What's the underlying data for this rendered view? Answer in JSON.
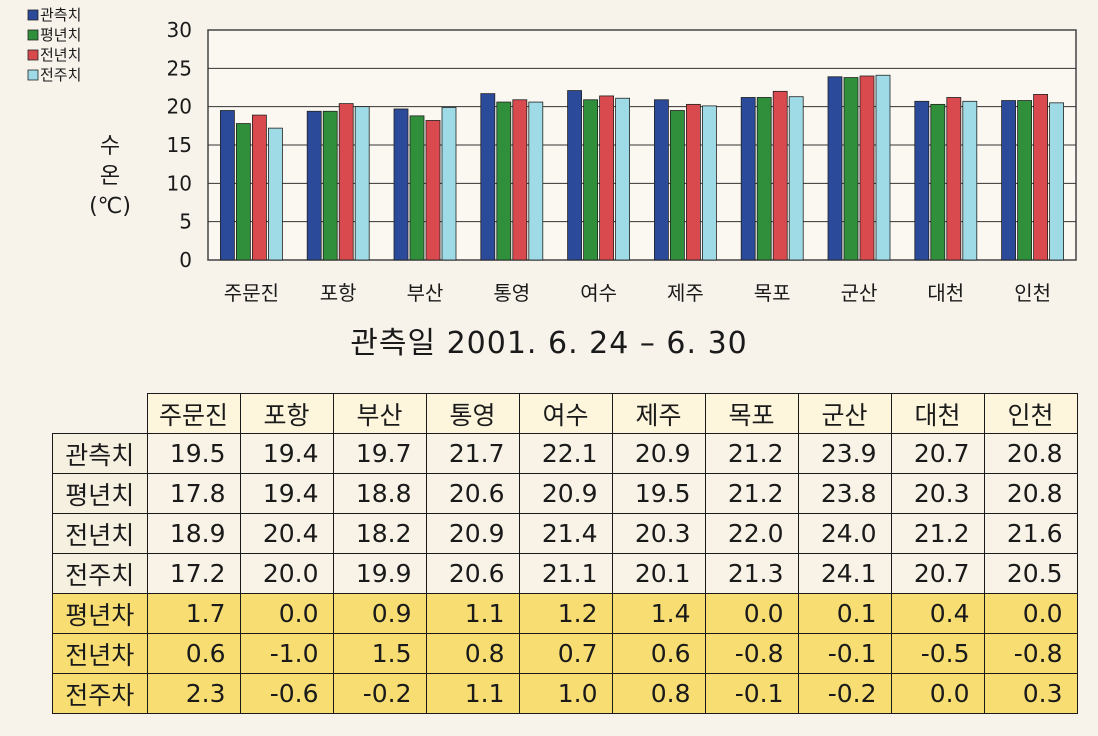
{
  "chart_data": {
    "type": "bar",
    "categories": [
      "주문진",
      "포항",
      "부산",
      "통영",
      "여수",
      "제주",
      "목포",
      "군산",
      "대천",
      "인천"
    ],
    "series": [
      {
        "name": "관측치",
        "color": "#2b4a9a",
        "values": [
          19.5,
          19.4,
          19.7,
          21.7,
          22.1,
          20.9,
          21.2,
          23.9,
          20.7,
          20.8
        ]
      },
      {
        "name": "평년치",
        "color": "#2f8f3a",
        "values": [
          17.8,
          19.4,
          18.8,
          20.6,
          20.9,
          19.5,
          21.2,
          23.8,
          20.3,
          20.8
        ]
      },
      {
        "name": "전년치",
        "color": "#d94a4f",
        "values": [
          18.9,
          20.4,
          18.2,
          20.9,
          21.4,
          20.3,
          22.0,
          24.0,
          21.2,
          21.6
        ]
      },
      {
        "name": "전주치",
        "color": "#9fdbe6",
        "values": [
          17.2,
          20.0,
          19.9,
          20.6,
          21.1,
          20.1,
          21.3,
          24.1,
          20.7,
          20.5
        ]
      }
    ],
    "ylabel": [
      "수",
      "온",
      "(℃)"
    ],
    "ylim": [
      0,
      30
    ],
    "yticks": [
      0,
      5,
      10,
      15,
      20,
      25,
      30
    ],
    "grid": true,
    "legend": "top-left",
    "subtitle": "관측일 2001. 6. 24 – 6. 30"
  },
  "table": {
    "columns": [
      "주문진",
      "포항",
      "부산",
      "통영",
      "여수",
      "제주",
      "목포",
      "군산",
      "대천",
      "인천"
    ],
    "rows": [
      {
        "label": "관측치",
        "values": [
          "19.5",
          "19.4",
          "19.7",
          "21.7",
          "22.1",
          "20.9",
          "21.2",
          "23.9",
          "20.7",
          "20.8"
        ]
      },
      {
        "label": "평년치",
        "values": [
          "17.8",
          "19.4",
          "18.8",
          "20.6",
          "20.9",
          "19.5",
          "21.2",
          "23.8",
          "20.3",
          "20.8"
        ]
      },
      {
        "label": "전년치",
        "values": [
          "18.9",
          "20.4",
          "18.2",
          "20.9",
          "21.4",
          "20.3",
          "22.0",
          "24.0",
          "21.2",
          "21.6"
        ]
      },
      {
        "label": "전주치",
        "values": [
          "17.2",
          "20.0",
          "19.9",
          "20.6",
          "21.1",
          "20.1",
          "21.3",
          "24.1",
          "20.7",
          "20.5"
        ]
      },
      {
        "label": "평년차",
        "values": [
          "1.7",
          "0.0",
          "0.9",
          "1.1",
          "1.2",
          "1.4",
          "0.0",
          "0.1",
          "0.4",
          "0.0"
        ]
      },
      {
        "label": "전년차",
        "values": [
          "0.6",
          "-1.0",
          "1.5",
          "0.8",
          "0.7",
          "0.6",
          "-0.8",
          "-0.1",
          "-0.5",
          "-0.8"
        ]
      },
      {
        "label": "전주차",
        "values": [
          "2.3",
          "-0.6",
          "-0.2",
          "1.1",
          "1.0",
          "0.8",
          "-0.1",
          "-0.2",
          "0.0",
          "0.3"
        ]
      }
    ]
  }
}
